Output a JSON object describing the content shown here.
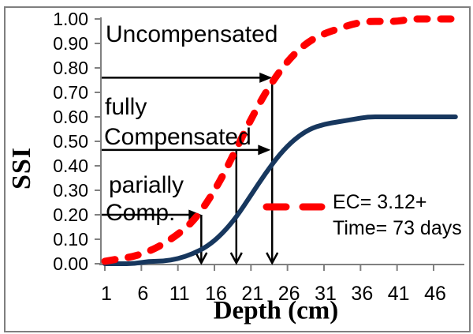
{
  "figure": {
    "background_color": "#FFFFFF",
    "border_color": "#7F7F7F",
    "axis_color": "#808080",
    "arrow_color": "#000000"
  },
  "chart_data": {
    "type": "line",
    "title": "",
    "xlabel": "Depth (cm)",
    "ylabel": "SSI",
    "xlim": [
      1,
      49.5
    ],
    "ylim": [
      0,
      1
    ],
    "x_ticks": [
      1,
      6,
      11,
      16,
      21,
      26,
      31,
      36,
      41,
      46
    ],
    "y_ticks": [
      "0.00",
      "0.10",
      "0.20",
      "0.30",
      "0.40",
      "0.50",
      "0.60",
      "0.70",
      "0.80",
      "0.90",
      "1.00"
    ],
    "grid": false,
    "x": [
      1,
      3,
      5,
      7,
      9,
      11,
      13,
      15,
      17,
      19,
      21,
      23,
      25,
      27,
      29,
      31,
      33,
      35,
      37,
      39,
      41,
      43,
      45,
      47,
      49
    ],
    "series": [
      {
        "name": "Uncompensated",
        "color": "#FF0000",
        "line_style": "dashed",
        "line_width": 9,
        "values": [
          0.01,
          0.02,
          0.03,
          0.05,
          0.08,
          0.12,
          0.17,
          0.25,
          0.35,
          0.47,
          0.59,
          0.7,
          0.79,
          0.86,
          0.91,
          0.94,
          0.96,
          0.98,
          0.99,
          0.99,
          0.99,
          1.0,
          1.0,
          1.0,
          1.0
        ]
      },
      {
        "name": "Compensated",
        "color": "#17375E",
        "line_style": "solid",
        "line_width": 6,
        "values": [
          0.0,
          0.0,
          0.0,
          0.01,
          0.01,
          0.02,
          0.04,
          0.07,
          0.12,
          0.19,
          0.28,
          0.37,
          0.45,
          0.51,
          0.55,
          0.57,
          0.58,
          0.59,
          0.6,
          0.6,
          0.6,
          0.6,
          0.6,
          0.6,
          0.6
        ]
      }
    ],
    "legend": {
      "position": "inside-right",
      "sample_color": "#FF0000",
      "sample_style": "dashed",
      "lines": [
        "EC= 3.12+",
        "Time= 73 days"
      ]
    }
  },
  "annotations": {
    "labels": [
      {
        "id": "uncompensated",
        "text": "Uncompensated"
      },
      {
        "id": "fully",
        "text": "fully"
      },
      {
        "id": "compensated",
        "text": "Compensated"
      },
      {
        "id": "parially",
        "text": "parially"
      },
      {
        "id": "comp",
        "text": "Comp."
      }
    ],
    "arrows": [
      {
        "ssi": 0.76,
        "head_depth": 23.9,
        "drop_depth": 23.9
      },
      {
        "ssi": 0.465,
        "head_depth": 23.7,
        "drop_depth": 19.0
      },
      {
        "ssi": 0.2,
        "head_depth": 14.2,
        "drop_depth": 14.2
      }
    ]
  }
}
